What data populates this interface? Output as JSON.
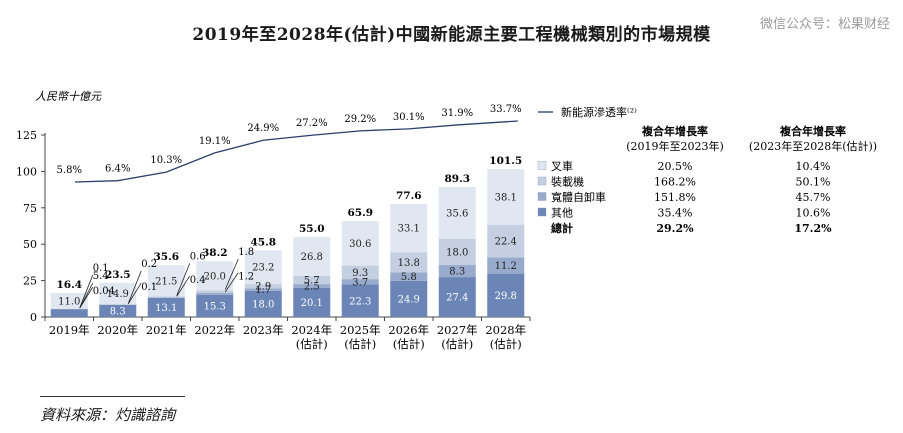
{
  "title": "2019年至2028年(估計)中國新能源主要工程機械類別的市場規模",
  "watermark": "微信公众号：松果财经",
  "source": "資料來源：灼識諮詢",
  "colors": {
    "forklift": "#e1e7f1",
    "loader": "#c4cfe2",
    "dump_truck": "#99abcc",
    "other": "#6a85b6",
    "line": "#2b3f6a",
    "axis": "#444444"
  },
  "chart_data": {
    "type": "bar",
    "stacked": true,
    "ylabel": "人民幣十億元",
    "ylim": [
      0,
      125
    ],
    "yticks": [
      0,
      25,
      50,
      75,
      100,
      125
    ],
    "categories": [
      "2019年",
      "2020年",
      "2021年",
      "2022年",
      "2023年",
      "2024年\n(估計)",
      "2025年\n(估計)",
      "2026年\n(估計)",
      "2027年\n(估計)",
      "2028年\n(估計)"
    ],
    "totals": [
      "16.4",
      "23.5",
      "35.6",
      "38.2",
      "45.8",
      "55.0",
      "65.9",
      "77.6",
      "89.3",
      "101.5"
    ],
    "series": [
      {
        "name": "其他",
        "key": "other",
        "values": [
          5.4,
          8.3,
          13.1,
          15.3,
          18.0,
          20.1,
          22.3,
          24.9,
          27.4,
          29.8
        ],
        "labels": [
          "5.4",
          "8.3",
          "13.1",
          "15.3",
          "18.0",
          "20.1",
          "22.3",
          "24.9",
          "27.4",
          "29.8"
        ]
      },
      {
        "name": "寬體自卸車",
        "key": "dump_truck",
        "values": [
          0.04,
          0.1,
          0.4,
          1.2,
          1.7,
          2.5,
          3.7,
          5.8,
          8.3,
          11.2
        ],
        "labels": [
          "0.04",
          "0.1",
          "0.4",
          "1.2",
          "1.7",
          "2.5",
          "3.7",
          "5.8",
          "8.3",
          "11.2"
        ]
      },
      {
        "name": "裝載機",
        "key": "loader",
        "values": [
          0.1,
          0.2,
          0.6,
          1.8,
          2.9,
          5.7,
          9.3,
          13.8,
          18.0,
          22.4
        ],
        "labels": [
          "0.1",
          "0.2",
          "0.6",
          "1.8",
          "2.9",
          "5.7",
          "9.3",
          "13.8",
          "18.0",
          "22.4"
        ]
      },
      {
        "name": "叉車",
        "key": "forklift",
        "values": [
          11.0,
          14.9,
          21.5,
          20.0,
          23.2,
          26.8,
          30.6,
          33.1,
          35.6,
          38.1
        ],
        "labels": [
          "11.0",
          "14.9",
          "21.5",
          "20.0",
          "23.2",
          "26.8",
          "30.6",
          "33.1",
          "35.6",
          "38.1"
        ]
      }
    ],
    "line_series": {
      "name": "新能源滲透率⁽²⁾",
      "values": [
        5.8,
        6.4,
        10.3,
        19.1,
        24.9,
        27.2,
        29.2,
        30.1,
        31.9,
        33.7
      ],
      "labels": [
        "5.8%",
        "6.4%",
        "10.3%",
        "19.1%",
        "24.9%",
        "27.2%",
        "29.2%",
        "30.1%",
        "31.9%",
        "33.7%"
      ]
    },
    "legend": {
      "line_label": "新能源滲透率⁽²⁾",
      "col1_header": [
        "複合年增長率",
        "(2019年至2023年)"
      ],
      "col2_header": [
        "複合年增長率",
        "(2023年至2028年(估計))"
      ],
      "rows": [
        {
          "key": "forklift",
          "name": "叉車",
          "cagr1": "20.5%",
          "cagr2": "10.4%"
        },
        {
          "key": "loader",
          "name": "裝載機",
          "cagr1": "168.2%",
          "cagr2": "50.1%"
        },
        {
          "key": "dump_truck",
          "name": "寬體自卸車",
          "cagr1": "151.8%",
          "cagr2": "45.7%"
        },
        {
          "key": "other",
          "name": "其他",
          "cagr1": "35.4%",
          "cagr2": "10.6%"
        }
      ],
      "total_row": {
        "name": "總計",
        "cagr1": "29.2%",
        "cagr2": "17.2%"
      }
    }
  }
}
